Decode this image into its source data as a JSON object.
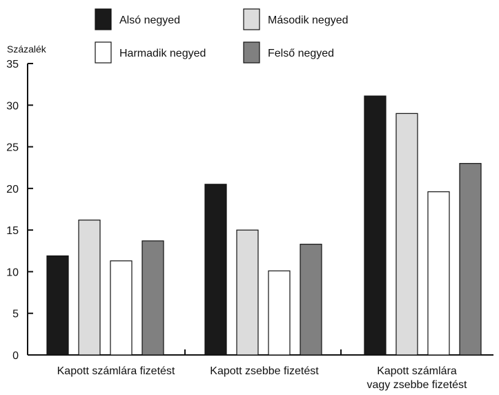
{
  "chart_data": {
    "type": "bar",
    "ylabel": "Százalék",
    "ylim": [
      0,
      35
    ],
    "yticks": [
      0,
      5,
      10,
      15,
      20,
      25,
      30,
      35
    ],
    "grid": false,
    "legend_position": "top",
    "categories": [
      [
        "Kapott számlára fizetést"
      ],
      [
        "Kapott zsebbe fizetést"
      ],
      [
        "Kapott számlára",
        "vagy zsebbe fizetést"
      ]
    ],
    "series": [
      {
        "name": "Alsó negyed",
        "color": "#1a1a1a",
        "values": [
          11.9,
          20.5,
          31.1
        ]
      },
      {
        "name": "Második negyed",
        "color": "#dcdcdc",
        "values": [
          16.2,
          15.0,
          29.0
        ]
      },
      {
        "name": "Harmadik negyed",
        "color": "#ffffff",
        "values": [
          11.3,
          10.1,
          19.6
        ]
      },
      {
        "name": "Felső negyed",
        "color": "#808080",
        "values": [
          13.7,
          13.3,
          23.0
        ]
      }
    ]
  }
}
